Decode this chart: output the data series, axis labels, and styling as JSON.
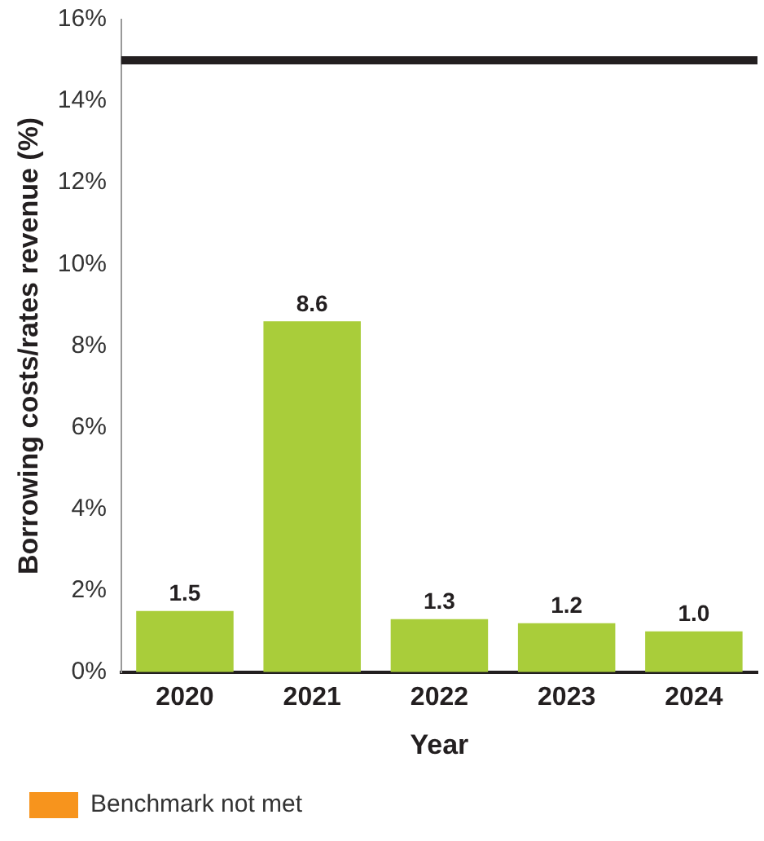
{
  "chart_data": {
    "type": "bar",
    "xlabel": "Year",
    "ylabel": "Borrowing costs/rates revenue (%)",
    "categories": [
      "2020",
      "2021",
      "2022",
      "2023",
      "2024"
    ],
    "series": [
      {
        "color": "#a9cd3a",
        "values": [
          1.5,
          8.6,
          1.3,
          1.2,
          1.0
        ],
        "value_labels": [
          "1.5",
          "8.6",
          "1.3",
          "1.2",
          "1.0"
        ]
      },
      {
        "name": "Benchmark not met",
        "color": "#f7941d",
        "values": [
          null,
          null,
          null,
          null,
          null
        ]
      }
    ],
    "ylim": [
      0,
      16
    ],
    "yticks": [
      {
        "value": 0,
        "label": "0%"
      },
      {
        "value": 2,
        "label": "2%"
      },
      {
        "value": 4,
        "label": "4%"
      },
      {
        "value": 6,
        "label": "6%"
      },
      {
        "value": 8,
        "label": "8%"
      },
      {
        "value": 10,
        "label": "10%"
      },
      {
        "value": 12,
        "label": "12%"
      },
      {
        "value": 14,
        "label": "14%"
      },
      {
        "value": 16,
        "label": "16%"
      }
    ],
    "ref_lines": [
      {
        "axis": "y",
        "value": 15,
        "color": "#231f20"
      }
    ],
    "grid": false,
    "legend": "bottom"
  }
}
